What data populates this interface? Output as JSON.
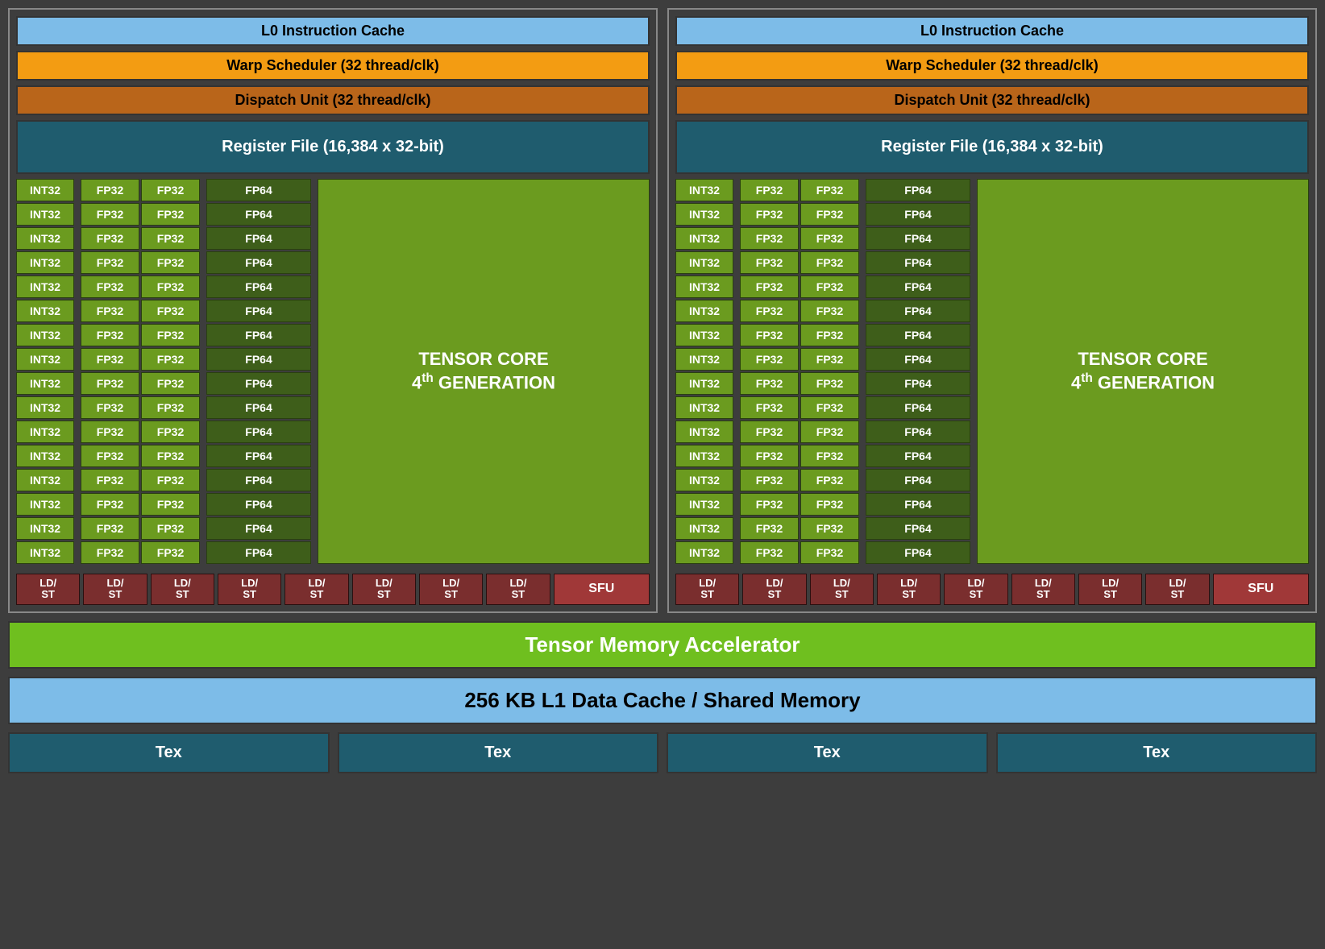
{
  "diagram": {
    "type": "gpu-sm-block-diagram",
    "background_color": "#3d3d3d",
    "border_color": "#888888",
    "partition": {
      "count": 2,
      "l0_cache": {
        "label": "L0 Instruction Cache",
        "bg": "#7dbce8",
        "fg": "#000000"
      },
      "warp_scheduler": {
        "label": "Warp Scheduler (32 thread/clk)",
        "bg": "#f39c12",
        "fg": "#000000"
      },
      "dispatch_unit": {
        "label": "Dispatch Unit (32 thread/clk)",
        "bg": "#b9651a",
        "fg": "#000000"
      },
      "register_file": {
        "label": "Register File (16,384 x 32-bit)",
        "bg": "#1f5c6e",
        "fg": "#ffffff"
      },
      "execution": {
        "int32": {
          "label": "INT32",
          "count": 16,
          "bg": "#6b9b1f"
        },
        "fp32": {
          "label": "FP32",
          "count_pairs": 16,
          "bg": "#6b9b1f"
        },
        "fp64": {
          "label": "FP64",
          "count": 16,
          "bg": "#3e5e1a"
        },
        "tensor_core": {
          "line1": "TENSOR CORE",
          "line2_pre": "4",
          "line2_sup": "th",
          "line2_post": " GENERATION",
          "bg": "#6b9b1f"
        }
      },
      "ldst": {
        "label_line1": "LD/",
        "label_line2": "ST",
        "count": 8,
        "bg": "#7a2e2e"
      },
      "sfu": {
        "label": "SFU",
        "bg": "#a03838"
      }
    },
    "bottom": {
      "tma": {
        "label": "Tensor Memory Accelerator",
        "bg": "#6fbf1f",
        "fg": "#ffffff"
      },
      "l1": {
        "label": "256 KB L1 Data Cache / Shared Memory",
        "bg": "#7dbce8",
        "fg": "#000000"
      },
      "tex": {
        "label": "Tex",
        "count": 4,
        "bg": "#1f5c6e",
        "fg": "#ffffff"
      }
    }
  }
}
